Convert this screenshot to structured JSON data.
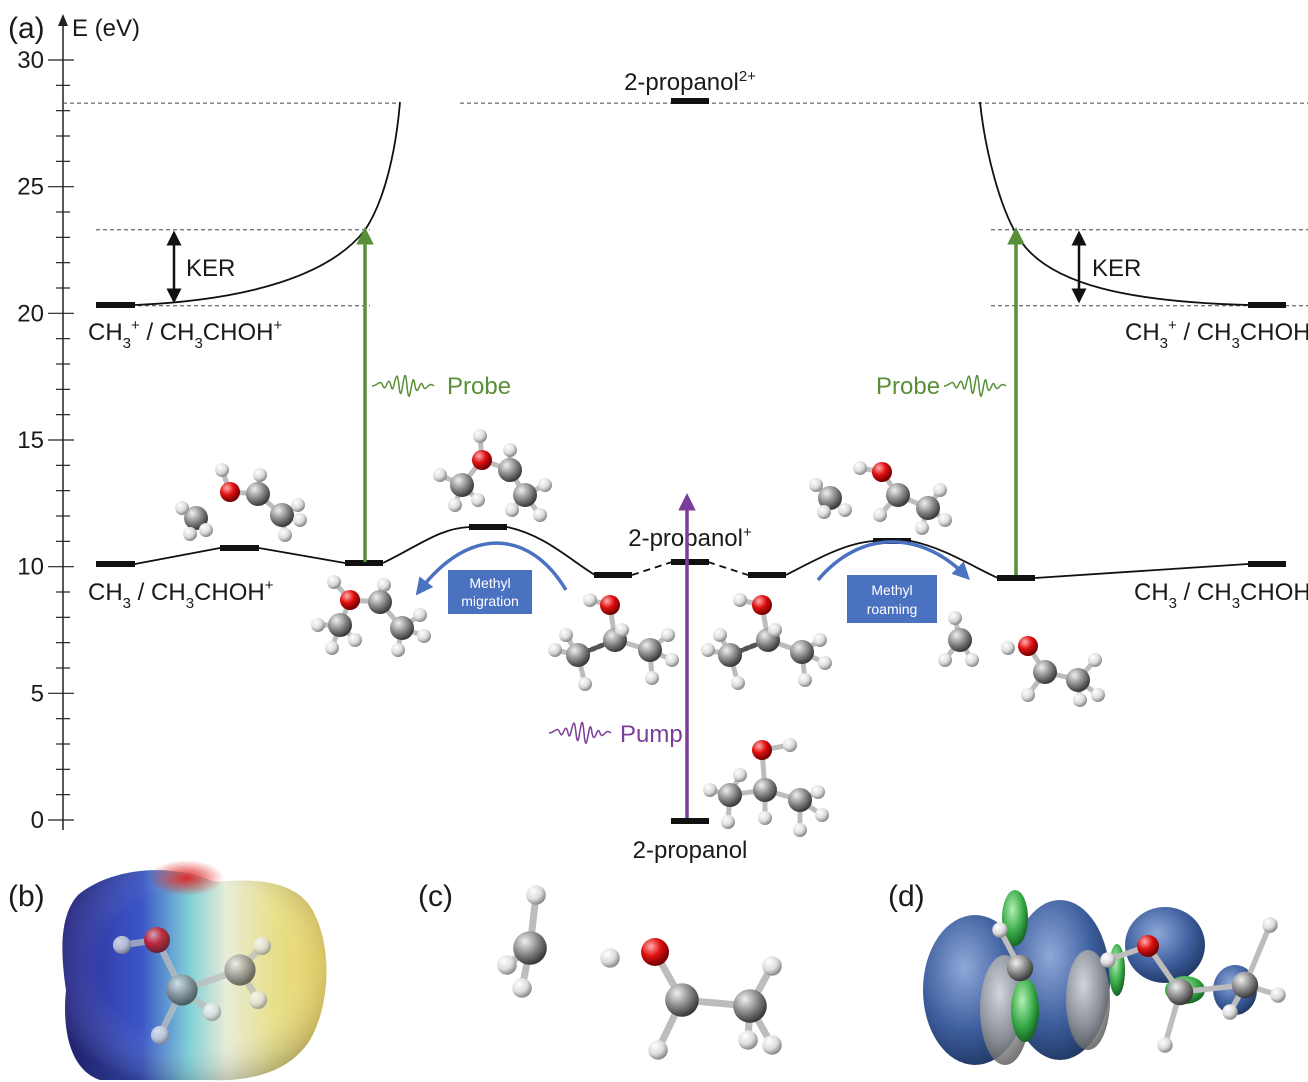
{
  "panels": {
    "a": "(a)",
    "b": "(b)",
    "c": "(c)",
    "d": "(d)"
  },
  "axis": {
    "label": "E (eV)",
    "ticks": [
      "0",
      "5",
      "10",
      "15",
      "20",
      "25",
      "30"
    ],
    "range": [
      0,
      30
    ]
  },
  "levels": {
    "dication": {
      "name": "2-propanol",
      "sup": "2+",
      "energy": 28.3
    },
    "cation": {
      "name": "2-propanol",
      "sup": "+",
      "energy": 10.2
    },
    "neutral": {
      "name": "2-propanol",
      "energy": 0
    },
    "left_ion_asymptote": {
      "energy": 20.3
    },
    "probe_final": {
      "energy": 23.3
    },
    "left_neutral_channel": {
      "energy": 10.1
    },
    "right_neutral_channel": {
      "energy": 10.1
    },
    "left_ts": {
      "energy": 10.7
    },
    "left_intermediate": {
      "energy": 10.1
    },
    "migration_ts": {
      "energy": 11.5
    },
    "left_min": {
      "energy": 9.6
    },
    "right_min": {
      "energy": 9.6
    },
    "roaming_ts": {
      "energy": 11.0
    },
    "right_intermediate": {
      "energy": 9.5
    },
    "right_ion_asymptote": {
      "energy": 20.3
    }
  },
  "channels": {
    "left_ion": {
      "a": "CH",
      "a_sub": "3",
      "a_sup": "+",
      "sep": " / CH",
      "b_sub": "3",
      "b": "CHOH",
      "b_sup": "+"
    },
    "right_ion": {
      "a": "CH",
      "a_sub": "3",
      "a_sup": "+",
      "sep": " / CH",
      "b_sub": "3",
      "b": "CHOH",
      "b_sup": "+"
    },
    "left_neutral": {
      "a": "CH",
      "a_sub": "3",
      "sep": " / CH",
      "b_sub": "3",
      "b": "CHOH",
      "b_sup": "+"
    },
    "right_neutral": {
      "a": "CH",
      "a_sub": "3",
      "sep": " / CH",
      "b_sub": "3",
      "b": "CHOH",
      "b_sup": "+"
    }
  },
  "annotations": {
    "ker_left": "KER",
    "ker_right": "KER",
    "probe_left": "Probe",
    "probe_right": "Probe",
    "pump": "Pump",
    "migration_line1": "Methyl",
    "migration_line2": "migration",
    "roaming_line1": "Methyl",
    "roaming_line2": "roaming"
  },
  "colors": {
    "probe": "#5a8f3a",
    "pump": "#7a3e98",
    "process_arrow": "#4a72c0",
    "process_box": "#4a72c0",
    "oxygen": "#d41616",
    "carbon": "#7c7c7c",
    "hydrogen": "#e8e8e8",
    "level_bar": "#111111"
  }
}
